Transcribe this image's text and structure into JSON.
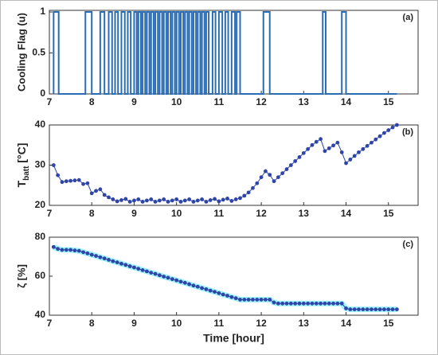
{
  "chart_data": [
    {
      "type": "line",
      "ylabel": "Cooling Flag (u)",
      "annotation": "(a)",
      "color": "#2a6db5",
      "markers": false,
      "xlim": [
        7,
        15.7
      ],
      "xticks": [
        7,
        8,
        9,
        10,
        11,
        12,
        13,
        14,
        15
      ],
      "ylim": [
        0,
        1.02
      ],
      "yticks": [
        0,
        0.5,
        1
      ],
      "x": [
        7.1,
        7.1,
        7.22,
        7.22,
        7.85,
        7.85,
        8.0,
        8.0,
        8.2,
        8.2,
        8.3,
        8.3,
        8.4,
        8.4,
        8.48,
        8.48,
        8.55,
        8.55,
        8.62,
        8.62,
        8.7,
        8.7,
        8.78,
        8.78,
        8.85,
        8.85,
        8.92,
        8.92,
        9.0,
        9.0,
        9.06,
        9.06,
        9.1,
        9.1,
        9.16,
        9.16,
        9.2,
        9.2,
        9.26,
        9.26,
        9.3,
        9.3,
        9.36,
        9.36,
        9.4,
        9.4,
        9.46,
        9.46,
        9.5,
        9.5,
        9.56,
        9.56,
        9.6,
        9.6,
        9.66,
        9.66,
        9.7,
        9.7,
        9.76,
        9.76,
        9.8,
        9.8,
        9.86,
        9.86,
        9.9,
        9.9,
        9.96,
        9.96,
        10.0,
        10.0,
        10.06,
        10.06,
        10.1,
        10.1,
        10.16,
        10.16,
        10.2,
        10.2,
        10.26,
        10.26,
        10.3,
        10.3,
        10.36,
        10.36,
        10.4,
        10.4,
        10.46,
        10.46,
        10.5,
        10.5,
        10.56,
        10.56,
        10.6,
        10.6,
        10.66,
        10.66,
        10.7,
        10.7,
        10.76,
        10.76,
        10.85,
        10.85,
        10.92,
        10.92,
        11.0,
        11.0,
        11.08,
        11.08,
        11.15,
        11.15,
        11.22,
        11.22,
        11.3,
        11.3,
        11.38,
        11.38,
        11.42,
        11.42,
        11.5,
        11.5,
        12.05,
        12.05,
        12.2,
        12.2,
        13.45,
        13.45,
        13.52,
        13.52,
        13.9,
        13.9,
        14.0,
        14.0,
        15.2
      ],
      "values": [
        0,
        1,
        1,
        0,
        0,
        1,
        1,
        0,
        0,
        1,
        1,
        0,
        0,
        1,
        1,
        0,
        0,
        1,
        1,
        0,
        0,
        1,
        1,
        0,
        0,
        1,
        1,
        0,
        0,
        1,
        1,
        0,
        0,
        1,
        1,
        0,
        0,
        1,
        1,
        0,
        0,
        1,
        1,
        0,
        0,
        1,
        1,
        0,
        0,
        1,
        1,
        0,
        0,
        1,
        1,
        0,
        0,
        1,
        1,
        0,
        0,
        1,
        1,
        0,
        0,
        1,
        1,
        0,
        0,
        1,
        1,
        0,
        0,
        1,
        1,
        0,
        0,
        1,
        1,
        0,
        0,
        1,
        1,
        0,
        0,
        1,
        1,
        0,
        0,
        1,
        1,
        0,
        0,
        1,
        1,
        0,
        0,
        1,
        1,
        0,
        0,
        1,
        1,
        0,
        0,
        1,
        1,
        0,
        0,
        1,
        1,
        0,
        0,
        1,
        1,
        0,
        0,
        1,
        1,
        0,
        0,
        1,
        1,
        0,
        0,
        1,
        1,
        0,
        0,
        1,
        1,
        0,
        0
      ]
    },
    {
      "type": "line",
      "ylabel_parts": [
        "T",
        "batt",
        " [°C]"
      ],
      "annotation": "(b)",
      "color": "#2f45a8",
      "markers": true,
      "xlim": [
        7,
        15.7
      ],
      "xticks": [
        7,
        8,
        9,
        10,
        11,
        12,
        13,
        14,
        15
      ],
      "ylim": [
        20,
        40
      ],
      "yticks": [
        20,
        30,
        40
      ],
      "x": [
        7.1,
        7.2,
        7.3,
        7.4,
        7.5,
        7.6,
        7.7,
        7.8,
        7.9,
        8.0,
        8.1,
        8.2,
        8.3,
        8.4,
        8.5,
        8.6,
        8.7,
        8.8,
        8.9,
        9.0,
        9.1,
        9.2,
        9.3,
        9.4,
        9.5,
        9.6,
        9.7,
        9.8,
        9.9,
        10.0,
        10.1,
        10.2,
        10.3,
        10.4,
        10.5,
        10.6,
        10.7,
        10.8,
        10.9,
        11.0,
        11.1,
        11.2,
        11.3,
        11.4,
        11.5,
        11.6,
        11.7,
        11.8,
        11.9,
        12.0,
        12.1,
        12.2,
        12.3,
        12.4,
        12.5,
        12.6,
        12.7,
        12.8,
        12.9,
        13.0,
        13.1,
        13.2,
        13.3,
        13.4,
        13.5,
        13.6,
        13.7,
        13.8,
        13.9,
        14.0,
        14.1,
        14.2,
        14.3,
        14.4,
        14.5,
        14.6,
        14.7,
        14.8,
        14.9,
        15.0,
        15.1,
        15.2
      ],
      "values": [
        30,
        27.5,
        25.8,
        26,
        26.1,
        26.2,
        26.3,
        25.3,
        25.5,
        23,
        23.6,
        24,
        22.6,
        22,
        21.5,
        21,
        21.3,
        21.6,
        20.9,
        21.2,
        21.5,
        20.9,
        21.2,
        21.5,
        20.9,
        21.2,
        21.5,
        20.9,
        21.2,
        21.5,
        20.9,
        21.2,
        21.5,
        20.9,
        21.2,
        21.5,
        20.9,
        21.3,
        21.6,
        21,
        21.4,
        21.7,
        21.1,
        21.5,
        21.8,
        22.4,
        23.2,
        24.3,
        25.5,
        27,
        28.5,
        27.6,
        26,
        27,
        28,
        29,
        30,
        31,
        32,
        33,
        34,
        35,
        35.8,
        36.5,
        33.5,
        34.2,
        34.9,
        35.6,
        33.2,
        30.5,
        31.4,
        32.3,
        33.2,
        34,
        34.8,
        35.6,
        36.4,
        37.2,
        38,
        38.7,
        39.4,
        40
      ]
    },
    {
      "type": "line",
      "ylabel": "ζ [%]",
      "annotation": "(c)",
      "xlabel": "Time [hour]",
      "color": "#2f45a8",
      "halo_color": "#9ef3ff",
      "markers": true,
      "xlim": [
        7,
        15.7
      ],
      "xticks": [
        7,
        8,
        9,
        10,
        11,
        12,
        13,
        14,
        15
      ],
      "ylim": [
        40,
        80
      ],
      "yticks": [
        40,
        60,
        80
      ],
      "x": [
        7.1,
        7.2,
        7.3,
        7.4,
        7.5,
        7.6,
        7.7,
        7.8,
        7.9,
        8.0,
        8.1,
        8.2,
        8.3,
        8.4,
        8.5,
        8.6,
        8.7,
        8.8,
        8.9,
        9.0,
        9.1,
        9.2,
        9.3,
        9.4,
        9.5,
        9.6,
        9.7,
        9.8,
        9.9,
        10.0,
        10.1,
        10.2,
        10.3,
        10.4,
        10.5,
        10.6,
        10.7,
        10.8,
        10.9,
        11.0,
        11.1,
        11.2,
        11.3,
        11.4,
        11.5,
        11.6,
        11.7,
        11.8,
        11.9,
        12.0,
        12.1,
        12.2,
        12.3,
        12.4,
        12.5,
        12.6,
        12.7,
        12.8,
        12.9,
        13.0,
        13.1,
        13.2,
        13.3,
        13.4,
        13.5,
        13.6,
        13.7,
        13.8,
        13.9,
        14.0,
        14.1,
        14.2,
        14.3,
        14.4,
        14.5,
        14.6,
        14.7,
        14.8,
        14.9,
        15.0,
        15.1,
        15.2
      ],
      "values": [
        75,
        74,
        73.5,
        73.5,
        73.5,
        73.2,
        73,
        72.3,
        71.7,
        71,
        70.4,
        69.7,
        69.1,
        68.4,
        67.7,
        67.1,
        66.4,
        65.8,
        65.1,
        64.5,
        63.8,
        63.1,
        62.5,
        61.8,
        61.2,
        60.5,
        59.8,
        59.2,
        58.5,
        57.9,
        57.2,
        56.6,
        55.9,
        55.2,
        54.6,
        53.9,
        53.3,
        52.6,
        52,
        51.3,
        50.6,
        50,
        49.3,
        48.7,
        48,
        48,
        48,
        48,
        48,
        48,
        48,
        48,
        46.5,
        46,
        46,
        46,
        46,
        46,
        46,
        46,
        46,
        46,
        46,
        46,
        46,
        46,
        46,
        46,
        46,
        43.5,
        43,
        43,
        43,
        43,
        43,
        43,
        43,
        43,
        43,
        43,
        43,
        43
      ]
    }
  ]
}
